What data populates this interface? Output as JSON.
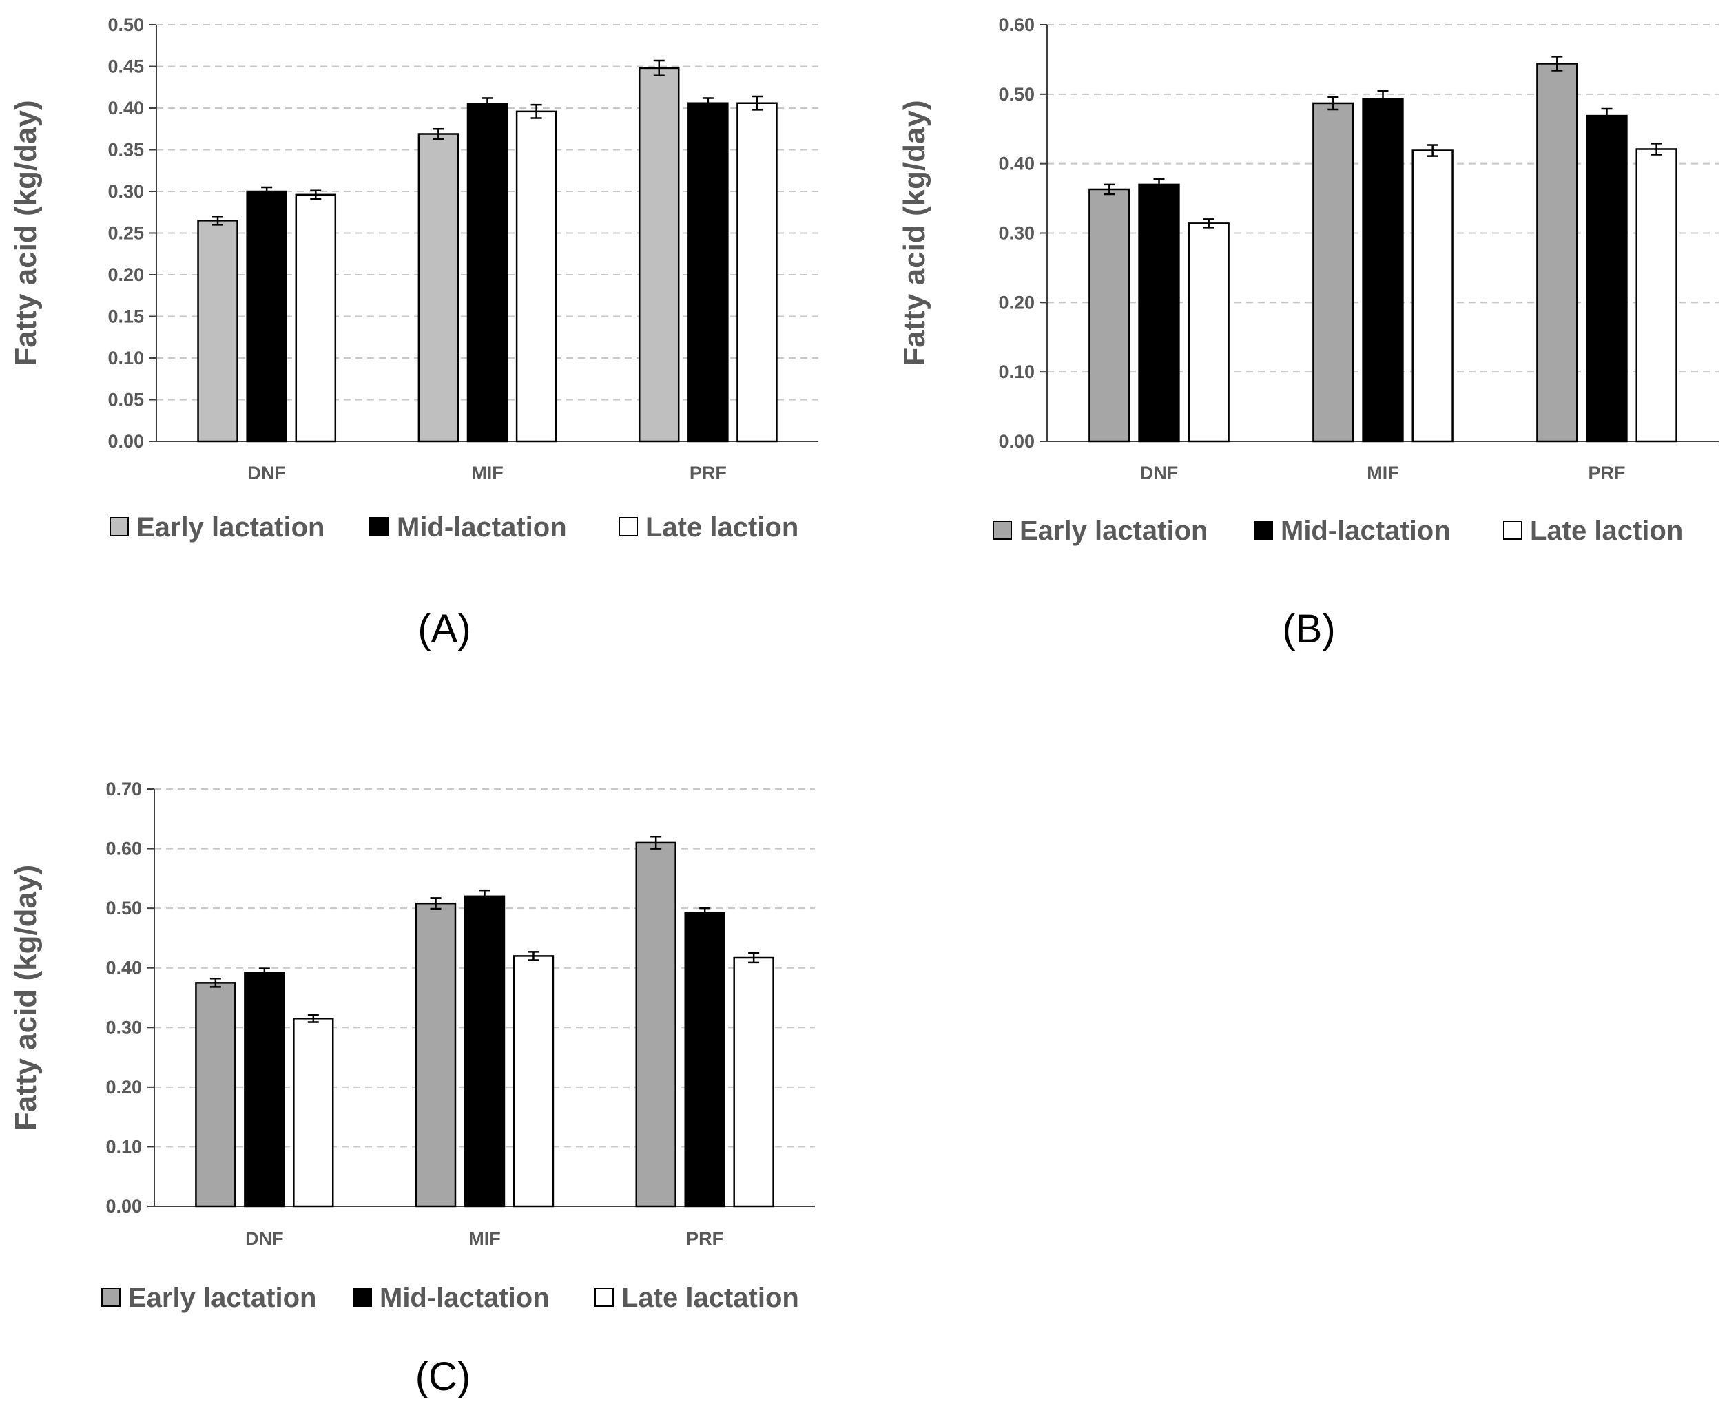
{
  "chart_data": [
    {
      "type": "bar",
      "panel_label": "(A)",
      "categories": [
        "DNF",
        "MIF",
        "PRF"
      ],
      "ylabel": "Fatty acid (kg/day)",
      "ylim": [
        0,
        0.5
      ],
      "yticks": [
        "0.00",
        "0.05",
        "0.10",
        "0.15",
        "0.20",
        "0.25",
        "0.30",
        "0.35",
        "0.40",
        "0.45",
        "0.50"
      ],
      "grid": true,
      "legend_position": "bottom",
      "series": [
        {
          "name": "Early lactation",
          "color": "#bfbfbf",
          "values": [
            0.265,
            0.369,
            0.448
          ],
          "errors": [
            0.005,
            0.006,
            0.009
          ]
        },
        {
          "name": "Mid-lactation",
          "color": "#000000",
          "values": [
            0.3,
            0.405,
            0.406
          ],
          "errors": [
            0.005,
            0.007,
            0.006
          ]
        },
        {
          "name": "Late laction",
          "color": "#ffffff",
          "values": [
            0.296,
            0.396,
            0.406
          ],
          "errors": [
            0.005,
            0.008,
            0.008
          ]
        }
      ]
    },
    {
      "type": "bar",
      "panel_label": "(B)",
      "categories": [
        "DNF",
        "MIF",
        "PRF"
      ],
      "ylabel": "Fatty acid (kg/day)",
      "ylim": [
        0,
        0.6
      ],
      "yticks": [
        "0.00",
        "0.10",
        "0.20",
        "0.30",
        "0.40",
        "0.50",
        "0.60"
      ],
      "grid": true,
      "legend_position": "bottom",
      "series": [
        {
          "name": "Early lactation",
          "color": "#a6a6a6",
          "values": [
            0.363,
            0.487,
            0.544
          ],
          "errors": [
            0.007,
            0.009,
            0.01
          ]
        },
        {
          "name": "Mid-lactation",
          "color": "#000000",
          "values": [
            0.37,
            0.493,
            0.469
          ],
          "errors": [
            0.008,
            0.012,
            0.01
          ]
        },
        {
          "name": "Late laction",
          "color": "#ffffff",
          "values": [
            0.314,
            0.419,
            0.421
          ],
          "errors": [
            0.006,
            0.008,
            0.008
          ]
        }
      ]
    },
    {
      "type": "bar",
      "panel_label": "(C)",
      "categories": [
        "DNF",
        "MIF",
        "PRF"
      ],
      "ylabel": "Fatty acid (kg/day)",
      "ylim": [
        0,
        0.7
      ],
      "yticks": [
        "0.00",
        "0.10",
        "0.20",
        "0.30",
        "0.40",
        "0.50",
        "0.60",
        "0.70"
      ],
      "grid": true,
      "legend_position": "bottom",
      "series": [
        {
          "name": "Early lactation",
          "color": "#a6a6a6",
          "values": [
            0.375,
            0.508,
            0.61
          ],
          "errors": [
            0.007,
            0.009,
            0.01
          ]
        },
        {
          "name": "Mid-lactation",
          "color": "#000000",
          "values": [
            0.392,
            0.52,
            0.492
          ],
          "errors": [
            0.007,
            0.01,
            0.008
          ]
        },
        {
          "name": "Late lactation",
          "color": "#ffffff",
          "values": [
            0.315,
            0.42,
            0.417
          ],
          "errors": [
            0.006,
            0.007,
            0.008
          ]
        }
      ]
    }
  ]
}
